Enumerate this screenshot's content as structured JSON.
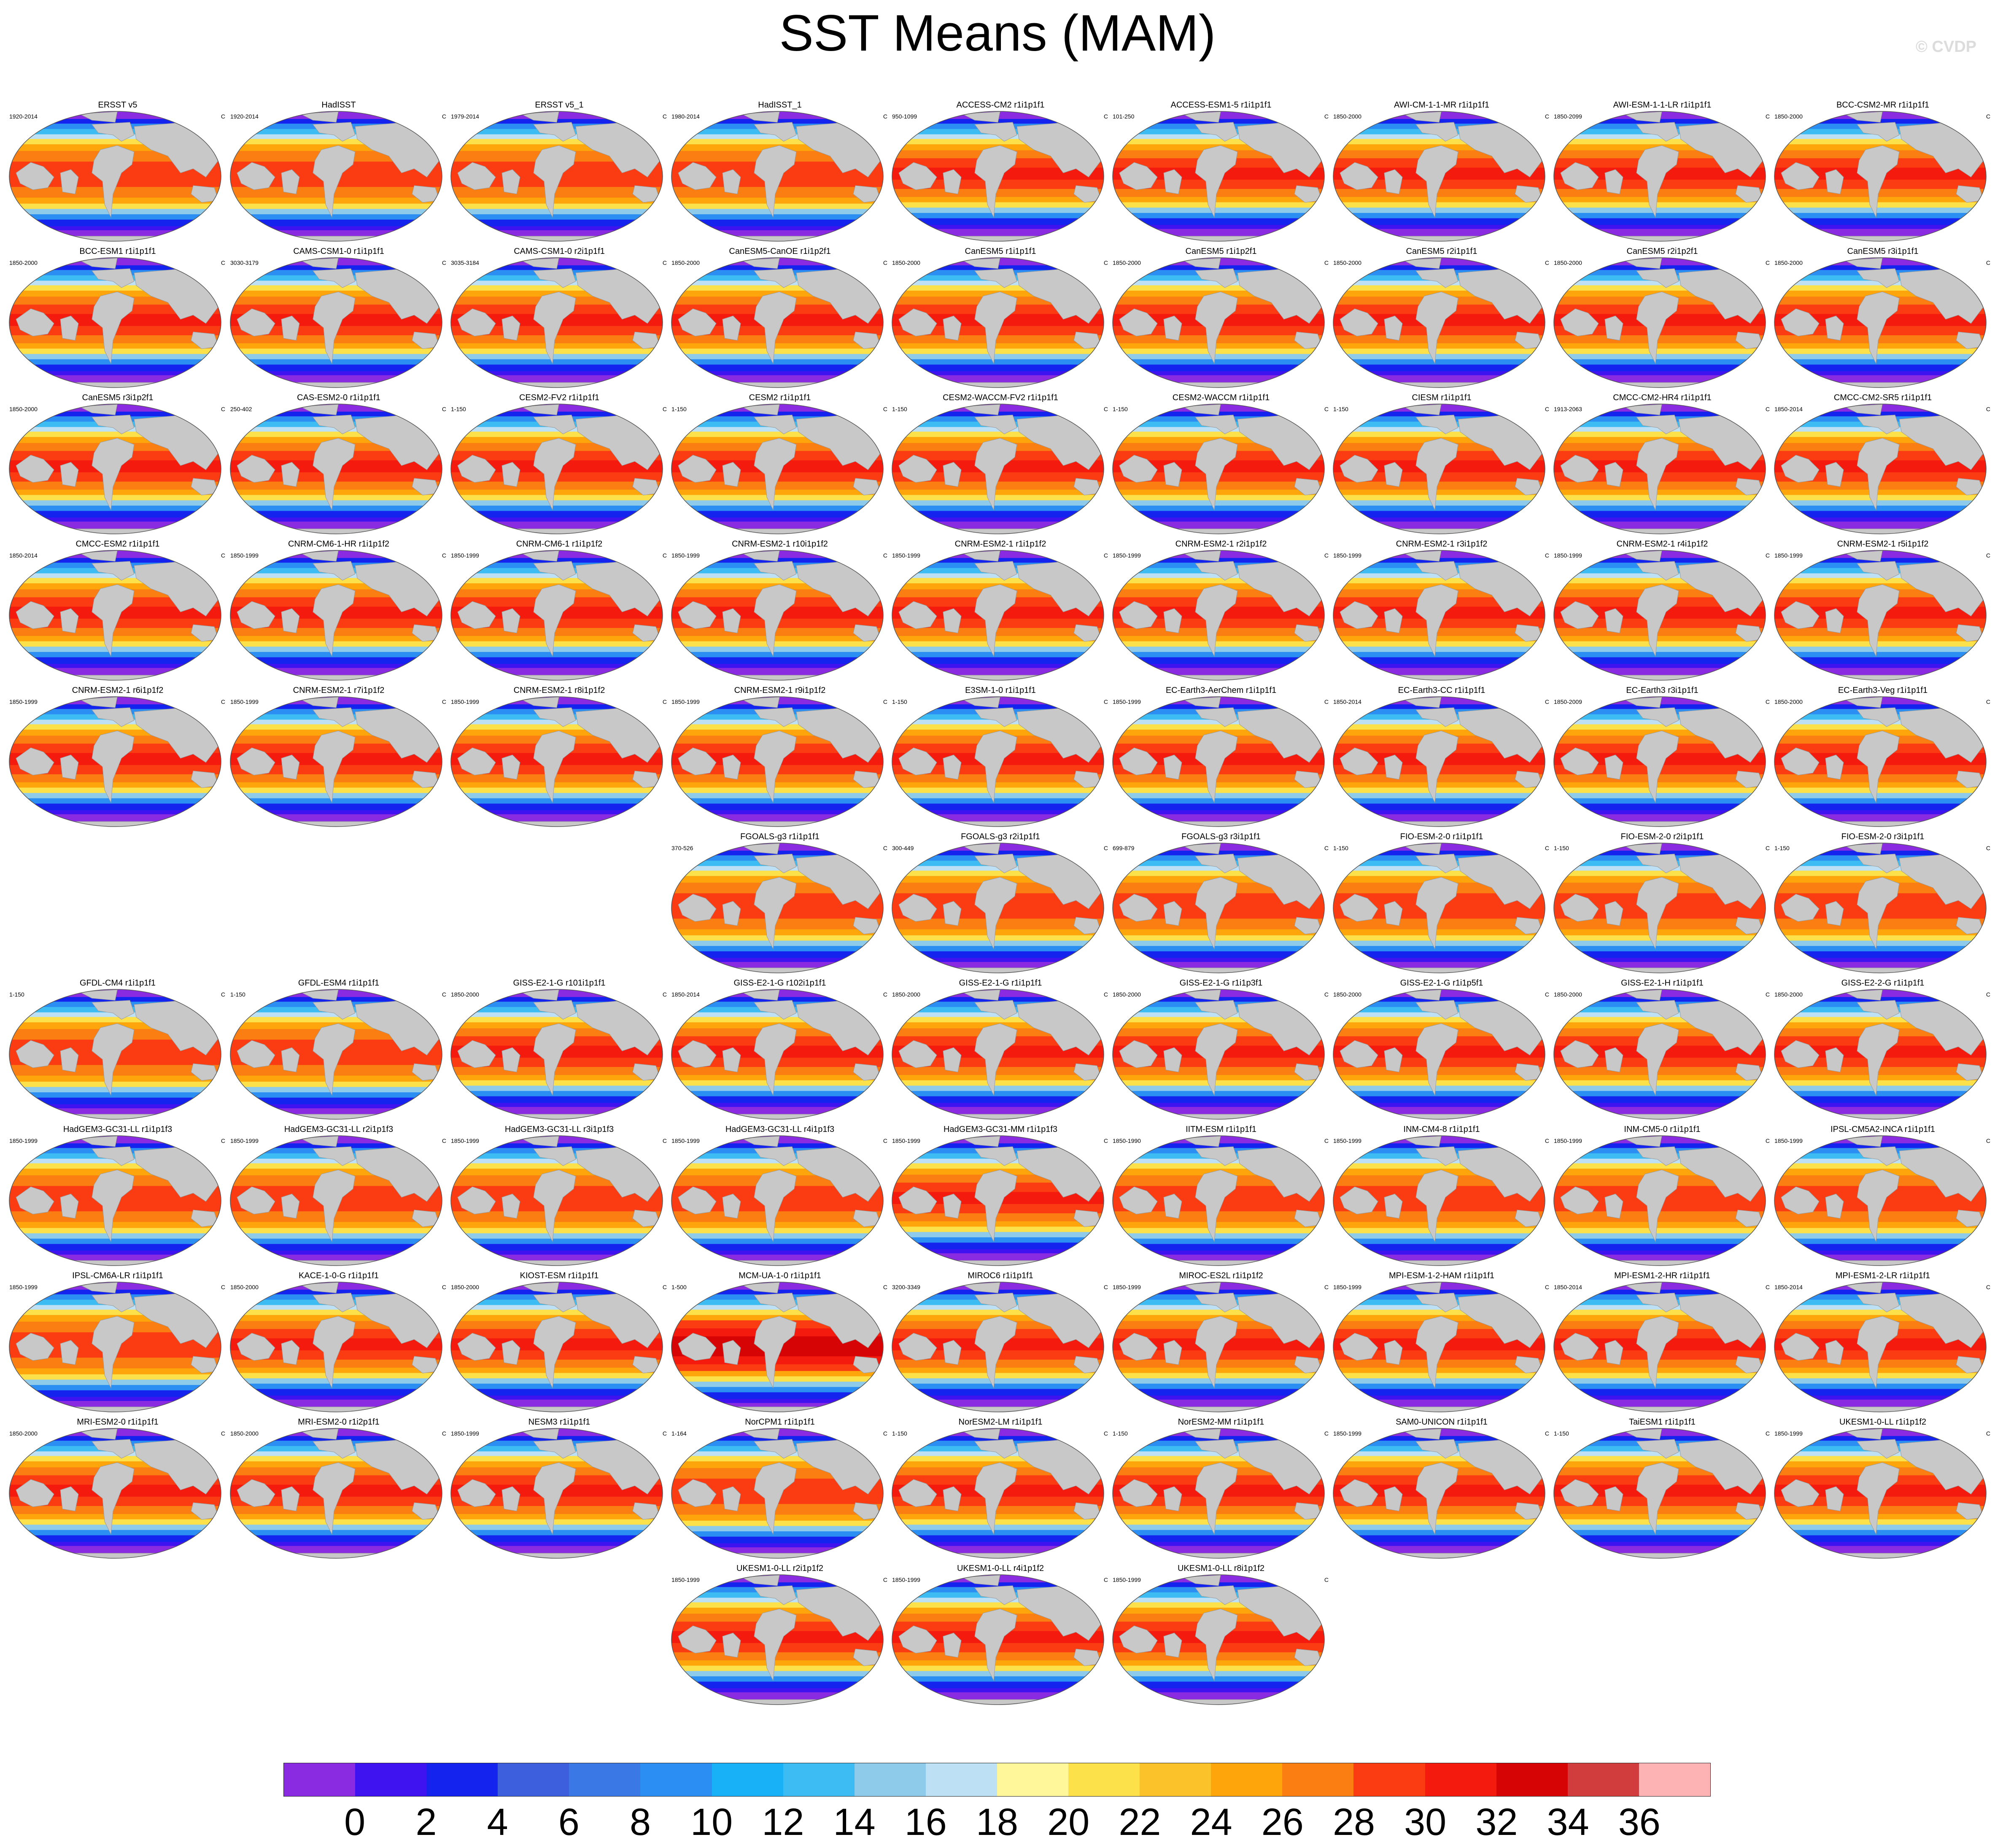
{
  "title": "SST Means (MAM)",
  "credit": "© CVDP",
  "colors": {
    "land": "#c8c8c8",
    "scale": [
      "#8a2be2",
      "#3f13ef",
      "#1424ee",
      "#3d5fde",
      "#3a78e6",
      "#2a8ef2",
      "#18b0f6",
      "#3cbcf2",
      "#8ecaea",
      "#bde0f4",
      "#fff79a",
      "#fde14a",
      "#fcc22a",
      "#fda50a",
      "#fb7e12",
      "#fb3b12",
      "#f41a0e",
      "#d60404",
      "#d13c3c",
      "#fdb3b3"
    ]
  },
  "colorbar": {
    "labels": [
      "0",
      "2",
      "4",
      "6",
      "8",
      "10",
      "12",
      "14",
      "16",
      "18",
      "20",
      "22",
      "24",
      "26",
      "28",
      "30",
      "32",
      "34",
      "36"
    ]
  },
  "rows": [
    {
      "offset": 0,
      "panels": [
        {
          "name": "ERSST v5",
          "period": "1920-2014",
          "unit": "C",
          "kind": "obs"
        },
        {
          "name": "HadISST",
          "period": "1920-2014",
          "unit": "C",
          "kind": "obs"
        },
        {
          "name": "ERSST v5_1",
          "period": "1979-2014",
          "unit": "C",
          "kind": "obs"
        },
        {
          "name": "HadISST_1",
          "period": "1980-2014",
          "unit": "C",
          "kind": "obs"
        },
        {
          "name": "ACCESS-CM2 r1i1p1f1",
          "period": "950-1099",
          "unit": "C",
          "kind": "warm"
        },
        {
          "name": "ACCESS-ESM1-5 r1i1p1f1",
          "period": "101-250",
          "unit": "C",
          "kind": "warm"
        },
        {
          "name": "AWI-CM-1-1-MR r1i1p1f1",
          "period": "1850-2000",
          "unit": "C",
          "kind": "warm"
        },
        {
          "name": "AWI-ESM-1-1-LR r1i1p1f1",
          "period": "1850-2099",
          "unit": "C",
          "kind": "warm"
        },
        {
          "name": "BCC-CSM2-MR r1i1p1f1",
          "period": "1850-2000",
          "unit": "C",
          "kind": "warm"
        }
      ]
    },
    {
      "offset": 0,
      "panels": [
        {
          "name": "BCC-ESM1 r1i1p1f1",
          "period": "1850-2000",
          "unit": "C",
          "kind": "warm"
        },
        {
          "name": "CAMS-CSM1-0 r1i1p1f1",
          "period": "3030-3179",
          "unit": "C",
          "kind": "warm"
        },
        {
          "name": "CAMS-CSM1-0 r2i1p1f1",
          "period": "3035-3184",
          "unit": "C",
          "kind": "warm"
        },
        {
          "name": "CanESM5-CanOE r1i1p2f1",
          "period": "1850-2000",
          "unit": "C",
          "kind": "warm"
        },
        {
          "name": "CanESM5 r1i1p1f1",
          "period": "1850-2000",
          "unit": "C",
          "kind": "warm"
        },
        {
          "name": "CanESM5 r1i1p2f1",
          "period": "1850-2000",
          "unit": "C",
          "kind": "warm"
        },
        {
          "name": "CanESM5 r2i1p1f1",
          "period": "1850-2000",
          "unit": "C",
          "kind": "warm"
        },
        {
          "name": "CanESM5 r2i1p2f1",
          "period": "1850-2000",
          "unit": "C",
          "kind": "warm"
        },
        {
          "name": "CanESM5 r3i1p1f1",
          "period": "1850-2000",
          "unit": "C",
          "kind": "warm"
        }
      ]
    },
    {
      "offset": 0,
      "panels": [
        {
          "name": "CanESM5 r3i1p2f1",
          "period": "1850-2000",
          "unit": "C",
          "kind": "warm"
        },
        {
          "name": "CAS-ESM2-0 r1i1p1f1",
          "period": "250-402",
          "unit": "C",
          "kind": "warm"
        },
        {
          "name": "CESM2-FV2 r1i1p1f1",
          "period": "1-150",
          "unit": "C",
          "kind": "warm"
        },
        {
          "name": "CESM2 r1i1p1f1",
          "period": "1-150",
          "unit": "C",
          "kind": "warm"
        },
        {
          "name": "CESM2-WACCM-FV2 r1i1p1f1",
          "period": "1-150",
          "unit": "C",
          "kind": "warm"
        },
        {
          "name": "CESM2-WACCM r1i1p1f1",
          "period": "1-150",
          "unit": "C",
          "kind": "warm"
        },
        {
          "name": "CIESM r1i1p1f1",
          "period": "1-150",
          "unit": "C",
          "kind": "warm"
        },
        {
          "name": "CMCC-CM2-HR4 r1i1p1f1",
          "period": "1913-2063",
          "unit": "C",
          "kind": "warm"
        },
        {
          "name": "CMCC-CM2-SR5 r1i1p1f1",
          "period": "1850-2014",
          "unit": "C",
          "kind": "warm"
        }
      ]
    },
    {
      "offset": 0,
      "panels": [
        {
          "name": "CMCC-ESM2 r1i1p1f1",
          "period": "1850-2014",
          "unit": "C",
          "kind": "warm"
        },
        {
          "name": "CNRM-CM6-1-HR r1i1p1f2",
          "period": "1850-1999",
          "unit": "C",
          "kind": "warm"
        },
        {
          "name": "CNRM-CM6-1 r1i1p1f2",
          "period": "1850-1999",
          "unit": "C",
          "kind": "warm"
        },
        {
          "name": "CNRM-ESM2-1 r10i1p1f2",
          "period": "1850-1999",
          "unit": "C",
          "kind": "warm"
        },
        {
          "name": "CNRM-ESM2-1 r1i1p1f2",
          "period": "1850-1999",
          "unit": "C",
          "kind": "warm"
        },
        {
          "name": "CNRM-ESM2-1 r2i1p1f2",
          "period": "1850-1999",
          "unit": "C",
          "kind": "warm"
        },
        {
          "name": "CNRM-ESM2-1 r3i1p1f2",
          "period": "1850-1999",
          "unit": "C",
          "kind": "warm"
        },
        {
          "name": "CNRM-ESM2-1 r4i1p1f2",
          "period": "1850-1999",
          "unit": "C",
          "kind": "warm"
        },
        {
          "name": "CNRM-ESM2-1 r5i1p1f2",
          "period": "1850-1999",
          "unit": "C",
          "kind": "warm"
        }
      ]
    },
    {
      "offset": 0,
      "panels": [
        {
          "name": "CNRM-ESM2-1 r6i1p1f2",
          "period": "1850-1999",
          "unit": "C",
          "kind": "warm"
        },
        {
          "name": "CNRM-ESM2-1 r7i1p1f2",
          "period": "1850-1999",
          "unit": "C",
          "kind": "warm"
        },
        {
          "name": "CNRM-ESM2-1 r8i1p1f2",
          "period": "1850-1999",
          "unit": "C",
          "kind": "warm"
        },
        {
          "name": "CNRM-ESM2-1 r9i1p1f2",
          "period": "1850-1999",
          "unit": "C",
          "kind": "warm"
        },
        {
          "name": "E3SM-1-0 r1i1p1f1",
          "period": "1-150",
          "unit": "C",
          "kind": "warm"
        },
        {
          "name": "EC-Earth3-AerChem r1i1p1f1",
          "period": "1850-1999",
          "unit": "C",
          "kind": "warm"
        },
        {
          "name": "EC-Earth3-CC r1i1p1f1",
          "period": "1850-2014",
          "unit": "C",
          "kind": "warm"
        },
        {
          "name": "EC-Earth3 r3i1p1f1",
          "period": "1850-2009",
          "unit": "C",
          "kind": "warm"
        },
        {
          "name": "EC-Earth3-Veg r1i1p1f1",
          "period": "1850-2000",
          "unit": "C",
          "kind": "warm"
        }
      ]
    },
    {
      "offset": 3,
      "panels": [
        {
          "name": "FGOALS-g3 r1i1p1f1",
          "period": "370-526",
          "unit": "C",
          "kind": "obs"
        },
        {
          "name": "FGOALS-g3 r2i1p1f1",
          "period": "300-449",
          "unit": "C",
          "kind": "obs"
        },
        {
          "name": "FGOALS-g3 r3i1p1f1",
          "period": "699-879",
          "unit": "C",
          "kind": "obs"
        },
        {
          "name": "FIO-ESM-2-0 r1i1p1f1",
          "period": "1-150",
          "unit": "C",
          "kind": "obs"
        },
        {
          "name": "FIO-ESM-2-0 r2i1p1f1",
          "period": "1-150",
          "unit": "C",
          "kind": "obs"
        },
        {
          "name": "FIO-ESM-2-0 r3i1p1f1",
          "period": "1-150",
          "unit": "C",
          "kind": "obs"
        }
      ]
    },
    {
      "offset": 0,
      "panels": [
        {
          "name": "GFDL-CM4 r1i1p1f1",
          "period": "1-150",
          "unit": "C",
          "kind": "obs"
        },
        {
          "name": "GFDL-ESM4 r1i1p1f1",
          "period": "1-150",
          "unit": "C",
          "kind": "obs"
        },
        {
          "name": "GISS-E2-1-G r101i1p1f1",
          "period": "1850-2000",
          "unit": "C",
          "kind": "warm"
        },
        {
          "name": "GISS-E2-1-G r102i1p1f1",
          "period": "1850-2014",
          "unit": "C",
          "kind": "warm"
        },
        {
          "name": "GISS-E2-1-G r1i1p1f1",
          "period": "1850-2000",
          "unit": "C",
          "kind": "warm"
        },
        {
          "name": "GISS-E2-1-G r1i1p3f1",
          "period": "1850-2000",
          "unit": "C",
          "kind": "warm"
        },
        {
          "name": "GISS-E2-1-G r1i1p5f1",
          "period": "1850-2000",
          "unit": "C",
          "kind": "warm"
        },
        {
          "name": "GISS-E2-1-H r1i1p1f1",
          "period": "1850-2000",
          "unit": "C",
          "kind": "warm"
        },
        {
          "name": "GISS-E2-2-G r1i1p1f1",
          "period": "1850-2000",
          "unit": "C",
          "kind": "warm"
        }
      ]
    },
    {
      "offset": 0,
      "panels": [
        {
          "name": "HadGEM3-GC31-LL r1i1p1f3",
          "period": "1850-1999",
          "unit": "C",
          "kind": "obs"
        },
        {
          "name": "HadGEM3-GC31-LL r2i1p1f3",
          "period": "1850-1999",
          "unit": "C",
          "kind": "obs"
        },
        {
          "name": "HadGEM3-GC31-LL r3i1p1f3",
          "period": "1850-1999",
          "unit": "C",
          "kind": "obs"
        },
        {
          "name": "HadGEM3-GC31-LL r4i1p1f3",
          "period": "1850-1999",
          "unit": "C",
          "kind": "obs"
        },
        {
          "name": "HadGEM3-GC31-MM r1i1p1f3",
          "period": "1850-1999",
          "unit": "C",
          "kind": "warm"
        },
        {
          "name": "IITM-ESM r1i1p1f1",
          "period": "1850-1990",
          "unit": "C",
          "kind": "obs"
        },
        {
          "name": "INM-CM4-8 r1i1p1f1",
          "period": "1850-1999",
          "unit": "C",
          "kind": "obs"
        },
        {
          "name": "INM-CM5-0 r1i1p1f1",
          "period": "1850-1999",
          "unit": "C",
          "kind": "obs"
        },
        {
          "name": "IPSL-CM5A2-INCA r1i1p1f1",
          "period": "1850-1999",
          "unit": "C",
          "kind": "obs"
        }
      ]
    },
    {
      "offset": 0,
      "panels": [
        {
          "name": "IPSL-CM6A-LR r1i1p1f1",
          "period": "1850-1999",
          "unit": "C",
          "kind": "obs"
        },
        {
          "name": "KACE-1-0-G r1i1p1f1",
          "period": "1850-2000",
          "unit": "C",
          "kind": "warm"
        },
        {
          "name": "KIOST-ESM r1i1p1f1",
          "period": "1850-2000",
          "unit": "C",
          "kind": "warm"
        },
        {
          "name": "MCM-UA-1-0 r1i1p1f1",
          "period": "1-500",
          "unit": "C",
          "kind": "hot"
        },
        {
          "name": "MIROC6 r1i1p1f1",
          "period": "3200-3349",
          "unit": "C",
          "kind": "warm"
        },
        {
          "name": "MIROC-ES2L r1i1p1f2",
          "period": "1850-1999",
          "unit": "C",
          "kind": "warm"
        },
        {
          "name": "MPI-ESM-1-2-HAM r1i1p1f1",
          "period": "1850-1999",
          "unit": "C",
          "kind": "warm"
        },
        {
          "name": "MPI-ESM1-2-HR r1i1p1f1",
          "period": "1850-2014",
          "unit": "C",
          "kind": "warm"
        },
        {
          "name": "MPI-ESM1-2-LR r1i1p1f1",
          "period": "1850-2014",
          "unit": "C",
          "kind": "warm"
        }
      ]
    },
    {
      "offset": 0,
      "panels": [
        {
          "name": "MRI-ESM2-0 r1i1p1f1",
          "period": "1850-2000",
          "unit": "C",
          "kind": "warm"
        },
        {
          "name": "MRI-ESM2-0 r1i2p1f1",
          "period": "1850-2000",
          "unit": "C",
          "kind": "warm"
        },
        {
          "name": "NESM3 r1i1p1f1",
          "period": "1850-1999",
          "unit": "C",
          "kind": "warm"
        },
        {
          "name": "NorCPM1 r1i1p1f1",
          "period": "1-164",
          "unit": "C",
          "kind": "obs"
        },
        {
          "name": "NorESM2-LM r1i1p1f1",
          "period": "1-150",
          "unit": "C",
          "kind": "warm"
        },
        {
          "name": "NorESM2-MM r1i1p1f1",
          "period": "1-150",
          "unit": "C",
          "kind": "warm"
        },
        {
          "name": "SAM0-UNICON r1i1p1f1",
          "period": "1850-1999",
          "unit": "C",
          "kind": "warm"
        },
        {
          "name": "TaiESM1 r1i1p1f1",
          "period": "1-150",
          "unit": "C",
          "kind": "warm"
        },
        {
          "name": "UKESM1-0-LL r1i1p1f2",
          "period": "1850-1999",
          "unit": "C",
          "kind": "warm"
        }
      ]
    },
    {
      "offset": 3,
      "panels": [
        {
          "name": "UKESM1-0-LL r2i1p1f2",
          "period": "1850-1999",
          "unit": "C",
          "kind": "warm"
        },
        {
          "name": "UKESM1-0-LL r4i1p1f2",
          "period": "1850-1999",
          "unit": "C",
          "kind": "warm"
        },
        {
          "name": "UKESM1-0-LL r8i1p1f2",
          "period": "1850-1999",
          "unit": "C",
          "kind": "warm"
        }
      ]
    }
  ]
}
